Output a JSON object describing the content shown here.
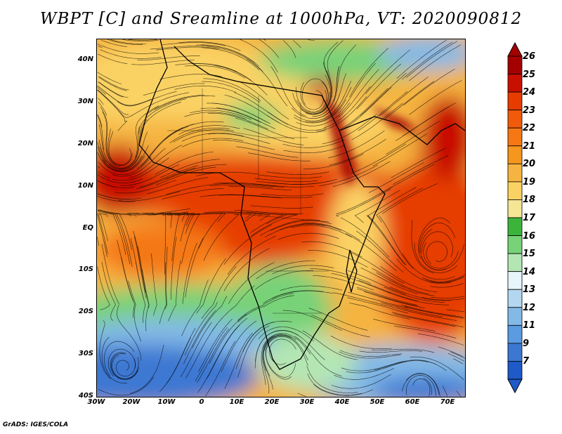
{
  "title": "WBPT [C] and Sreamline at 1000hPa, VT: 2020090812",
  "footer": "GrADS: IGES/COLA",
  "map": {
    "lon_range": [
      -30,
      75
    ],
    "lat_range": [
      -40,
      45
    ],
    "lat_ticks": [
      "40N",
      "30N",
      "20N",
      "10N",
      "EQ",
      "10S",
      "20S",
      "30S",
      "40S"
    ],
    "lon_ticks": [
      "30W",
      "20W",
      "10W",
      "0",
      "10E",
      "20E",
      "30E",
      "40E",
      "50E",
      "60E",
      "70E"
    ]
  },
  "colorbar": {
    "levels": [
      "26",
      "25",
      "24",
      "23",
      "22",
      "21",
      "20",
      "19",
      "18",
      "17",
      "16",
      "15",
      "14",
      "13",
      "12",
      "11",
      "9",
      "7"
    ],
    "colors": [
      "#a50000",
      "#c80f00",
      "#e63c00",
      "#f05a0a",
      "#f57814",
      "#f5961e",
      "#f5b441",
      "#fad264",
      "#f5e696",
      "#3cb43c",
      "#78d278",
      "#b4e6b4",
      "#e6f5fa",
      "#b4d7f0",
      "#82b9e6",
      "#5a9be1",
      "#3c78d2",
      "#1e5ac8"
    ]
  }
}
